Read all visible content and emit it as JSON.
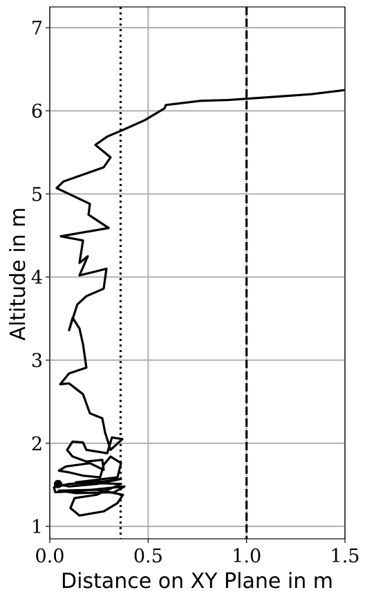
{
  "chart_data": {
    "type": "line",
    "xlabel": "Distance on XY Plane in m",
    "ylabel": "Altitude in m",
    "xlim": [
      0,
      1.5
    ],
    "ylim": [
      0.85,
      7.25
    ],
    "xticks": [
      {
        "value": 0,
        "label": "0.0"
      },
      {
        "value": 0.5,
        "label": "0.5"
      },
      {
        "value": 1,
        "label": "1.0"
      },
      {
        "value": 1.5,
        "label": "1.5"
      }
    ],
    "yticks": [
      1,
      2,
      3,
      4,
      5,
      6,
      7
    ],
    "grid": true,
    "vlines": [
      {
        "x": 0.36,
        "style": "dotted",
        "color": "#000000"
      },
      {
        "x": 1.0,
        "style": "dashed",
        "color": "#000000"
      }
    ],
    "series": [
      {
        "color": "#000000",
        "x": [
          0.042,
          0.098,
          0.239,
          0.362,
          0.274,
          0.098,
          0.021,
          0.028,
          0.169,
          0.379,
          0.327,
          0.133,
          0.046,
          0.239,
          0.372,
          0.344,
          0.274,
          0.151,
          0.105,
          0.126,
          0.239,
          0.362,
          0.133,
          0.344,
          0.362,
          0.309,
          0.274,
          0.256,
          0.169,
          0.098,
          0.046,
          0.081,
          0.204,
          0.274,
          0.267,
          0.186,
          0.116,
          0.088,
          0.116,
          0.169,
          0.186,
          0.292,
          0.316,
          0.369,
          0.309,
          0.281,
          0.267,
          0.204,
          0.169,
          0.098,
          0.053,
          0.098,
          0.186,
          0.169,
          0.151,
          0.116,
          0.098,
          0.14,
          0.186,
          0.274,
          0.288,
          0.239,
          0.151,
          0.193,
          0.151,
          0.169,
          0.056,
          0.299,
          0.197,
          0.204,
          0.035,
          0.07,
          0.274,
          0.309,
          0.232,
          0.292,
          0.372,
          0.485,
          0.583,
          0.59,
          0.766,
          0.906,
          1.152,
          1.328,
          1.5
        ],
        "values": [
          1.51,
          1.48,
          1.51,
          1.57,
          1.54,
          1.51,
          1.47,
          1.41,
          1.43,
          1.48,
          1.41,
          1.4,
          1.43,
          1.44,
          1.38,
          1.28,
          1.18,
          1.13,
          1.22,
          1.34,
          1.38,
          1.51,
          1.53,
          1.59,
          1.76,
          1.84,
          1.74,
          1.59,
          1.61,
          1.65,
          1.67,
          1.72,
          1.76,
          1.68,
          1.8,
          1.78,
          1.84,
          1.92,
          2.02,
          2.01,
          1.92,
          1.88,
          2.07,
          2.05,
          1.92,
          2.13,
          2.3,
          2.36,
          2.59,
          2.72,
          2.71,
          2.84,
          2.91,
          3.19,
          3.38,
          3.51,
          3.36,
          3.67,
          3.77,
          3.86,
          4.1,
          4.07,
          4.02,
          4.25,
          4.17,
          4.44,
          4.49,
          4.59,
          4.75,
          4.88,
          5.07,
          5.15,
          5.32,
          5.44,
          5.59,
          5.69,
          5.77,
          5.89,
          6.03,
          6.07,
          6.12,
          6.13,
          6.17,
          6.2,
          6.25
        ]
      }
    ]
  }
}
